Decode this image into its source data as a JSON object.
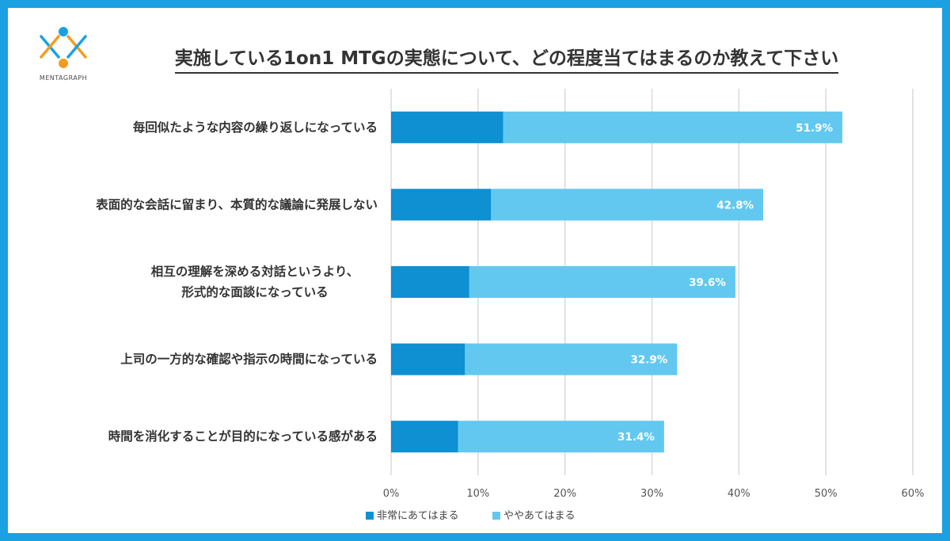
{
  "logo": {
    "text": "MENTAGRAPH"
  },
  "chart_data": {
    "type": "bar",
    "orientation": "horizontal",
    "stacked": true,
    "title": "実施している1on1 MTGの実態について、どの程度当てはまるのか教えて下さい",
    "categories": [
      [
        "毎回似たような内容の繰り返しになっている"
      ],
      [
        "表面的な会話に留まり、本質的な議論に発展しない"
      ],
      [
        "相互の理解を深める対話というより、",
        "形式的な面談になっている"
      ],
      [
        "上司の一方的な確認や指示の時間になっている"
      ],
      [
        "時間を消化することが目的になっている感がある"
      ]
    ],
    "series": [
      {
        "name": "非常にあてはまる",
        "color": "#0e90d2",
        "values": [
          12.9,
          11.5,
          9.0,
          8.5,
          7.7
        ]
      },
      {
        "name": "ややあてはまる",
        "color": "#63c8ef",
        "values": [
          39.0,
          31.3,
          30.6,
          24.4,
          23.7
        ]
      }
    ],
    "totals": [
      "51.9%",
      "42.8%",
      "39.6%",
      "32.9%",
      "31.4%"
    ],
    "xlim": [
      0,
      60
    ],
    "xticks": [
      0,
      10,
      20,
      30,
      40,
      50,
      60
    ],
    "xtick_labels": [
      "0%",
      "10%",
      "20%",
      "30%",
      "40%",
      "50%",
      "60%"
    ],
    "grid": true,
    "legend_position": "bottom"
  }
}
